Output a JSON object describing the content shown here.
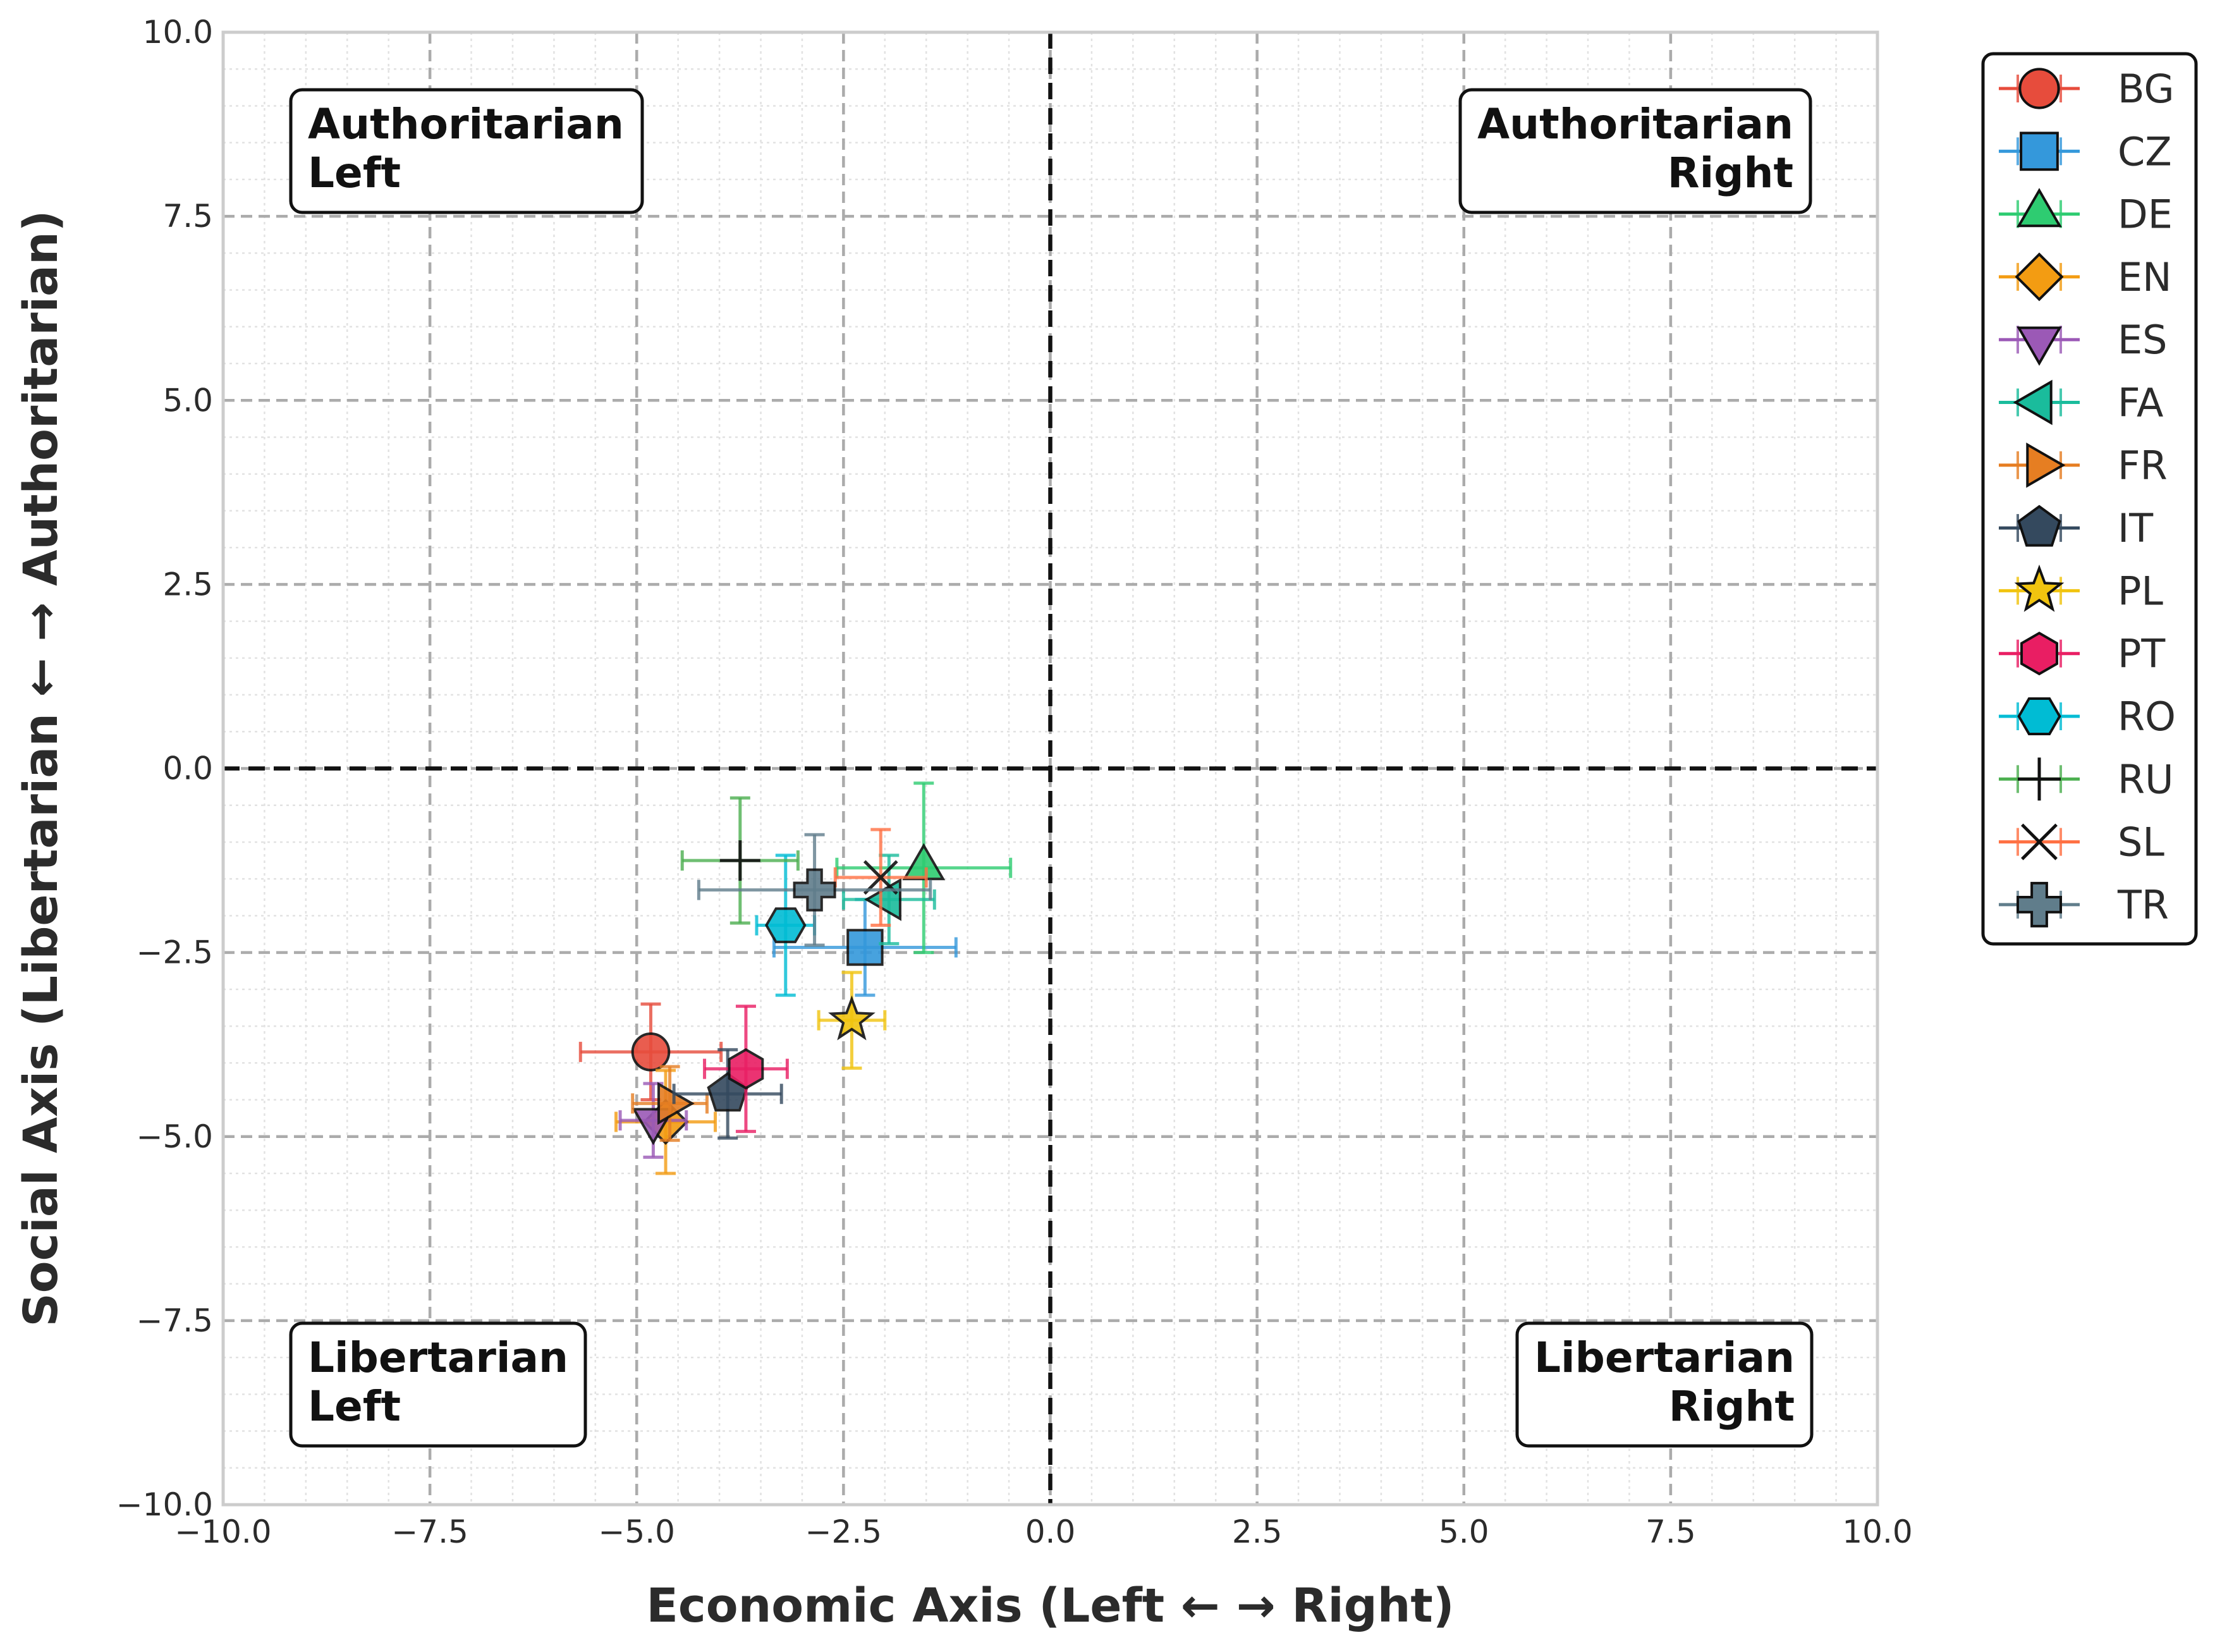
{
  "chart_data": {
    "type": "scatter",
    "xlabel": "Economic Axis (Left ← → Right)",
    "ylabel": "Social Axis (Libertarian ← → Authoritarian)",
    "xlim": [
      -10,
      10
    ],
    "ylim": [
      -10,
      10
    ],
    "xticks": [
      -10,
      -7.5,
      -5,
      -2.5,
      0,
      2.5,
      5,
      7.5,
      10
    ],
    "yticks": [
      -10,
      -7.5,
      -5,
      -2.5,
      0,
      2.5,
      5,
      7.5,
      10
    ],
    "xtick_labels": [
      "−10.0",
      "−7.5",
      "−5.0",
      "−2.5",
      "0.0",
      "2.5",
      "5.0",
      "7.5",
      "10.0"
    ],
    "ytick_labels": [
      "−10.0",
      "−7.5",
      "−5.0",
      "−2.5",
      "0.0",
      "2.5",
      "5.0",
      "7.5",
      "10.0"
    ],
    "grid": true,
    "legend_position": "outside-right-top",
    "quadrant_labels": [
      {
        "name": "authoritarian-left",
        "lines": [
          "Authoritarian",
          "Left"
        ],
        "corner": "top-left"
      },
      {
        "name": "authoritarian-right",
        "lines": [
          "Authoritarian",
          "Right"
        ],
        "corner": "top-right"
      },
      {
        "name": "libertarian-left",
        "lines": [
          "Libertarian",
          "Left"
        ],
        "corner": "bottom-left"
      },
      {
        "name": "libertarian-right",
        "lines": [
          "Libertarian",
          "Right"
        ],
        "corner": "bottom-right"
      }
    ],
    "series": [
      {
        "name": "BG",
        "x": -4.83,
        "y": -3.85,
        "xerr": 0.85,
        "yerr": 0.65,
        "marker": "circle",
        "color": "#e74c3c"
      },
      {
        "name": "CZ",
        "x": -2.24,
        "y": -2.43,
        "xerr": 1.1,
        "yerr": 0.65,
        "marker": "square",
        "color": "#3498db"
      },
      {
        "name": "DE",
        "x": -1.53,
        "y": -1.35,
        "xerr": 1.05,
        "yerr": 1.15,
        "marker": "triangle-up",
        "color": "#2ecc71"
      },
      {
        "name": "EN",
        "x": -4.65,
        "y": -4.8,
        "xerr": 0.6,
        "yerr": 0.7,
        "marker": "diamond",
        "color": "#f39c12"
      },
      {
        "name": "ES",
        "x": -4.8,
        "y": -4.78,
        "xerr": 0.4,
        "yerr": 0.5,
        "marker": "triangle-down",
        "color": "#9b59b6"
      },
      {
        "name": "FA",
        "x": -1.95,
        "y": -1.78,
        "xerr": 0.55,
        "yerr": 0.6,
        "marker": "triangle-left",
        "color": "#1abc9c"
      },
      {
        "name": "FR",
        "x": -4.6,
        "y": -4.55,
        "xerr": 0.45,
        "yerr": 0.5,
        "marker": "triangle-right",
        "color": "#e67e22"
      },
      {
        "name": "IT",
        "x": -3.9,
        "y": -4.42,
        "xerr": 0.65,
        "yerr": 0.6,
        "marker": "pentagon",
        "color": "#34495e"
      },
      {
        "name": "PL",
        "x": -2.4,
        "y": -3.42,
        "xerr": 0.4,
        "yerr": 0.65,
        "marker": "star",
        "color": "#f1c40f"
      },
      {
        "name": "PT",
        "x": -3.68,
        "y": -4.08,
        "xerr": 0.5,
        "yerr": 0.85,
        "marker": "hexagon",
        "color": "#e91e63"
      },
      {
        "name": "RO",
        "x": -3.2,
        "y": -2.13,
        "xerr": 0.35,
        "yerr": 0.95,
        "marker": "hexagon-flat",
        "color": "#00bcd4"
      },
      {
        "name": "RU",
        "x": -3.75,
        "y": -1.25,
        "xerr": 0.7,
        "yerr": 0.85,
        "marker": "plus",
        "color": "#4caf50"
      },
      {
        "name": "SL",
        "x": -2.05,
        "y": -1.48,
        "xerr": 0.55,
        "yerr": 0.65,
        "marker": "x",
        "color": "#ff7043"
      },
      {
        "name": "TR",
        "x": -2.85,
        "y": -1.65,
        "xerr": 1.4,
        "yerr": 0.75,
        "marker": "plus-filled",
        "color": "#607d8b"
      }
    ]
  }
}
